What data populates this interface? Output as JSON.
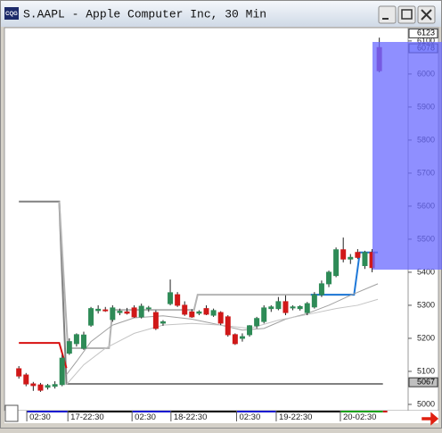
{
  "window": {
    "title": "S.AAPL - Apple Computer Inc, 30 Min",
    "icon": "CQG"
  },
  "chart_data": {
    "type": "candlestick",
    "open": [
      5108,
      5089,
      5062,
      5059,
      5052,
      5055,
      5060,
      5155,
      5184,
      5170,
      5240,
      5284,
      5286,
      5257,
      5278,
      5280,
      5292,
      5265,
      5290,
      5278,
      5246,
      5305,
      5332,
      5300,
      5280,
      5276,
      5290,
      5270,
      5278,
      5265,
      5211,
      5200,
      5211,
      5238,
      5251,
      5290,
      5290,
      5311,
      5292,
      5290,
      5278,
      5295,
      5332,
      5365,
      5390,
      5468,
      5440,
      5460,
      5420,
      5460,
      6080
    ],
    "high": [
      5116,
      5095,
      5068,
      5065,
      5062,
      5070,
      5150,
      5200,
      5215,
      5220,
      5295,
      5300,
      5295,
      5300,
      5290,
      5292,
      5300,
      5305,
      5298,
      5285,
      5255,
      5378,
      5340,
      5312,
      5288,
      5285,
      5300,
      5290,
      5282,
      5270,
      5215,
      5215,
      5240,
      5265,
      5300,
      5300,
      5325,
      5330,
      5300,
      5300,
      5310,
      5340,
      5375,
      5405,
      5475,
      5505,
      5455,
      5470,
      5465,
      5470,
      6110
    ],
    "low": [
      5078,
      5055,
      5041,
      5038,
      5045,
      5048,
      5055,
      5150,
      5175,
      5165,
      5235,
      5275,
      5280,
      5250,
      5270,
      5272,
      5262,
      5260,
      5280,
      5225,
      5238,
      5300,
      5295,
      5268,
      5262,
      5270,
      5270,
      5265,
      5240,
      5205,
      5180,
      5190,
      5205,
      5230,
      5245,
      5280,
      5285,
      5270,
      5285,
      5284,
      5270,
      5290,
      5325,
      5355,
      5385,
      5430,
      5425,
      5440,
      5410,
      5400,
      6005
    ],
    "close": [
      5086,
      5062,
      5057,
      5043,
      5057,
      5060,
      5140,
      5190,
      5211,
      5210,
      5290,
      5288,
      5284,
      5292,
      5282,
      5276,
      5265,
      5297,
      5292,
      5230,
      5250,
      5338,
      5300,
      5273,
      5265,
      5280,
      5273,
      5284,
      5246,
      5211,
      5184,
      5205,
      5238,
      5260,
      5292,
      5295,
      5311,
      5278,
      5295,
      5296,
      5305,
      5332,
      5365,
      5400,
      5468,
      5440,
      5445,
      5445,
      5460,
      5414,
      6010
    ],
    "up_color": "#2e8b57",
    "down_color": "#d01818",
    "last_color": "#9b2c8a",
    "lines": [
      {
        "color": "#808080",
        "width": 2,
        "x": [
          0,
          5.6,
          6.6,
          50.5
        ],
        "values": [
          5614,
          5614,
          5062,
          5062
        ]
      },
      {
        "color": "#b4b4b4",
        "width": 2,
        "x": [
          5.6,
          6.8,
          12.5,
          13.0,
          24.3,
          24.8,
          46.5
        ],
        "values": [
          5614,
          5170,
          5170,
          5286,
          5286,
          5332,
          5332
        ]
      },
      {
        "color": "#d81010",
        "width": 2,
        "x": [
          0,
          5.6,
          6.6
        ],
        "values": [
          5186,
          5186,
          5110
        ]
      },
      {
        "color": "#1e78d8",
        "width": 2,
        "x": [
          40.5,
          46.5,
          47.3,
          49.8
        ],
        "values": [
          5332,
          5332,
          5460,
          5460
        ]
      },
      {
        "color": "#a0a0a0",
        "width": 1,
        "x": [
          6.6,
          8,
          10,
          13,
          16,
          20,
          24,
          28,
          31,
          34,
          37,
          40,
          43,
          46,
          49.8
        ],
        "values": [
          5090,
          5130,
          5190,
          5240,
          5262,
          5268,
          5258,
          5240,
          5225,
          5230,
          5258,
          5275,
          5300,
          5330,
          5365
        ]
      },
      {
        "color": "#c4c4c4",
        "width": 1,
        "x": [
          6.6,
          9,
          12,
          16,
          20,
          24,
          28,
          32,
          36,
          40,
          44,
          47,
          49.8
        ],
        "values": [
          5060,
          5120,
          5170,
          5215,
          5240,
          5245,
          5240,
          5230,
          5255,
          5272,
          5290,
          5300,
          5318
        ]
      }
    ],
    "xlim": [
      -2,
      54
    ],
    "ylim": [
      4981,
      6124
    ],
    "yticks": [
      5000,
      5100,
      5200,
      5300,
      5400,
      5500,
      5600,
      5700,
      5800,
      5900,
      6000,
      6100
    ],
    "xticks": [
      {
        "value": 1.1,
        "label": "02:30"
      },
      {
        "value": 6.8,
        "label": "17-22:30"
      },
      {
        "value": 15.7,
        "label": "02:30"
      },
      {
        "value": 21.1,
        "label": "18-22:30"
      },
      {
        "value": 30.2,
        "label": "02:30"
      },
      {
        "value": 35.7,
        "label": "19-22:30"
      },
      {
        "value": 44.6,
        "label": "20-02:30"
      }
    ],
    "price_markers": [
      {
        "value": 6123,
        "color": "#ffffff"
      },
      {
        "value": 6078,
        "color": "#c8d8ff"
      },
      {
        "value": 5067,
        "color": "#c0c0c0"
      }
    ]
  }
}
